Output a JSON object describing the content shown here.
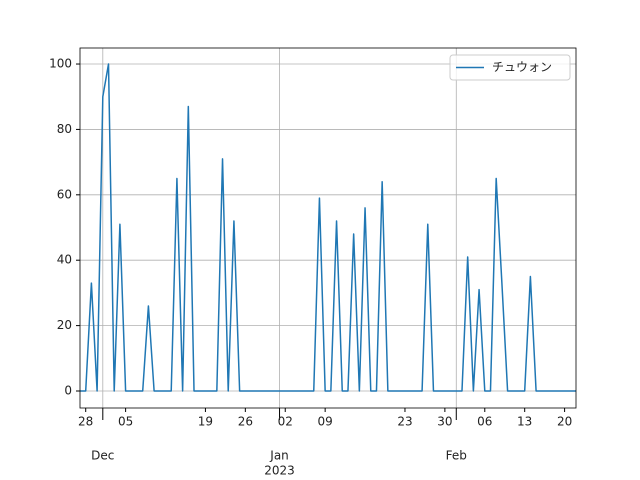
{
  "chart_data": {
    "type": "line",
    "x": [
      "2022-11-27",
      "2022-11-28",
      "2022-11-29",
      "2022-11-30",
      "2022-12-01",
      "2022-12-02",
      "2022-12-03",
      "2022-12-04",
      "2022-12-05",
      "2022-12-06",
      "2022-12-07",
      "2022-12-08",
      "2022-12-09",
      "2022-12-10",
      "2022-12-11",
      "2022-12-12",
      "2022-12-13",
      "2022-12-14",
      "2022-12-15",
      "2022-12-16",
      "2022-12-17",
      "2022-12-18",
      "2022-12-19",
      "2022-12-20",
      "2022-12-21",
      "2022-12-22",
      "2022-12-23",
      "2022-12-24",
      "2022-12-25",
      "2022-12-26",
      "2022-12-27",
      "2022-12-28",
      "2022-12-29",
      "2022-12-30",
      "2022-12-31",
      "2023-01-01",
      "2023-01-02",
      "2023-01-03",
      "2023-01-04",
      "2023-01-05",
      "2023-01-06",
      "2023-01-07",
      "2023-01-08",
      "2023-01-09",
      "2023-01-10",
      "2023-01-11",
      "2023-01-12",
      "2023-01-13",
      "2023-01-14",
      "2023-01-15",
      "2023-01-16",
      "2023-01-17",
      "2023-01-18",
      "2023-01-19",
      "2023-01-20",
      "2023-01-21",
      "2023-01-22",
      "2023-01-23",
      "2023-01-24",
      "2023-01-25",
      "2023-01-26",
      "2023-01-27",
      "2023-01-28",
      "2023-01-29",
      "2023-01-30",
      "2023-01-31",
      "2023-02-01",
      "2023-02-02",
      "2023-02-03",
      "2023-02-04",
      "2023-02-05",
      "2023-02-06",
      "2023-02-07",
      "2023-02-08",
      "2023-02-09",
      "2023-02-10",
      "2023-02-11",
      "2023-02-12",
      "2023-02-13",
      "2023-02-14",
      "2023-02-15",
      "2023-02-16",
      "2023-02-17",
      "2023-02-18",
      "2023-02-19",
      "2023-02-20",
      "2023-02-21",
      "2023-02-22"
    ],
    "series": [
      {
        "name": "チュウォン",
        "color": "#1f77b4",
        "values": [
          0,
          0,
          33,
          0,
          90,
          100,
          0,
          51,
          0,
          0,
          0,
          0,
          26,
          0,
          0,
          0,
          0,
          65,
          0,
          87,
          0,
          0,
          0,
          0,
          0,
          71,
          0,
          52,
          0,
          0,
          0,
          0,
          0,
          0,
          0,
          0,
          0,
          0,
          0,
          0,
          0,
          0,
          59,
          0,
          0,
          52,
          0,
          0,
          48,
          0,
          56,
          0,
          0,
          64,
          0,
          0,
          0,
          0,
          0,
          0,
          0,
          51,
          0,
          0,
          0,
          0,
          0,
          0,
          41,
          0,
          31,
          0,
          0,
          65,
          33,
          0,
          0,
          0,
          0,
          35,
          0,
          0,
          0,
          0,
          0,
          0,
          0,
          0
        ]
      }
    ],
    "xlim": [
      "2022-11-27",
      "2023-02-22"
    ],
    "xticks": [
      {
        "value": "2022-11-28",
        "label": "28"
      },
      {
        "value": "2022-12-05",
        "label": "05"
      },
      {
        "value": "2022-12-19",
        "label": "19"
      },
      {
        "value": "2022-12-26",
        "label": "26"
      },
      {
        "value": "2023-01-02",
        "label": "02"
      },
      {
        "value": "2023-01-09",
        "label": "09"
      },
      {
        "value": "2023-01-23",
        "label": "23"
      },
      {
        "value": "2023-01-30",
        "label": "30"
      },
      {
        "value": "2023-02-06",
        "label": "06"
      },
      {
        "value": "2023-02-13",
        "label": "13"
      },
      {
        "value": "2023-02-20",
        "label": "20"
      }
    ],
    "xticks_major": [
      {
        "value": "2022-12-01",
        "label": "Dec"
      },
      {
        "value": "2023-01-01",
        "label": "Jan"
      },
      {
        "value": "2023-02-01",
        "label": "Feb"
      }
    ],
    "year_label": "2023",
    "ylim": [
      -5.2,
      104.9
    ],
    "yticks": [
      0,
      20,
      40,
      60,
      80,
      100
    ],
    "grid": true,
    "legend": "upper right"
  }
}
